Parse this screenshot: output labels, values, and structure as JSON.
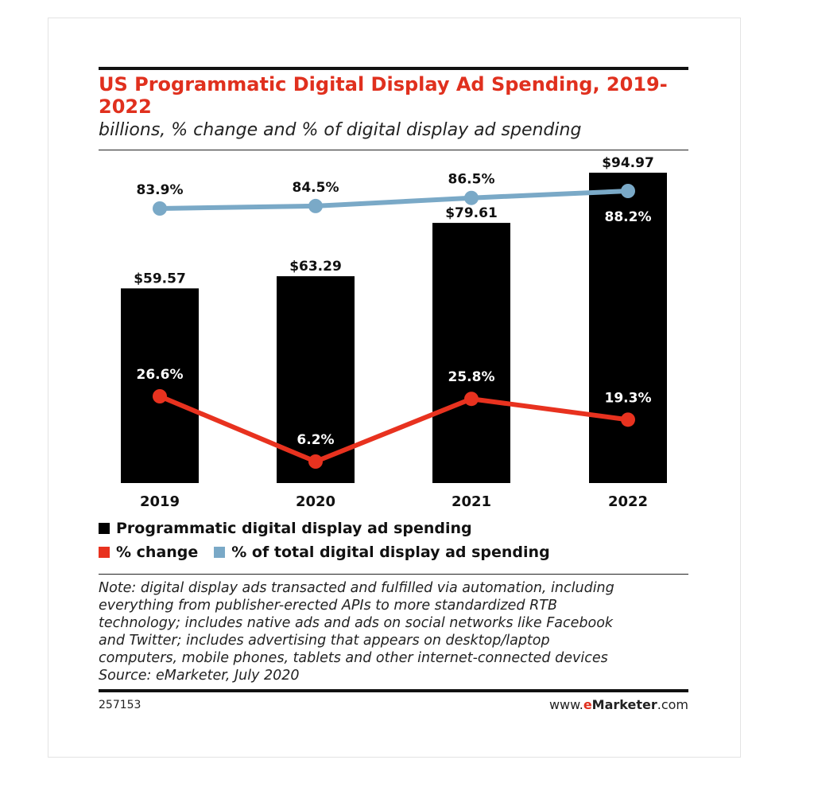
{
  "chart_data": {
    "type": "bar",
    "title": "US Programmatic Digital Display Ad Spending, 2019-2022",
    "subtitle": "billions, % change and % of digital display ad spending",
    "categories": [
      "2019",
      "2020",
      "2021",
      "2022"
    ],
    "bar_series": {
      "name": "Programmatic digital display ad spending",
      "values": [
        59.57,
        63.29,
        79.61,
        94.97
      ],
      "labels": [
        "$59.57",
        "$63.29",
        "$79.61",
        "$94.97"
      ],
      "color": "#000000"
    },
    "line_series": [
      {
        "name": "% change",
        "values": [
          26.6,
          6.2,
          25.8,
          19.3
        ],
        "labels": [
          "26.6%",
          "6.2%",
          "25.8%",
          "19.3%"
        ],
        "color": "#e8321f"
      },
      {
        "name": "% of total digital display ad spending",
        "values": [
          83.9,
          84.5,
          86.5,
          88.2
        ],
        "labels": [
          "83.9%",
          "84.5%",
          "86.5%",
          "88.2%"
        ],
        "color": "#7aa9c7"
      }
    ],
    "grid": false,
    "legend_position": "bottom-left"
  },
  "legend": {
    "bar_label": "Programmatic digital display ad spending",
    "change_label": "% change",
    "share_label": "% of total digital display ad spending"
  },
  "note": {
    "lines": [
      "Note: digital display ads transacted and fulfilled via automation, including",
      "everything from publisher-erected APIs to more standardized RTB",
      "technology; includes native ads and ads on social networks like Facebook",
      "and Twitter; includes advertising that appears on desktop/laptop",
      "computers, mobile phones, tablets and other internet-connected devices"
    ],
    "source": "Source: eMarketer, July 2020"
  },
  "footer": {
    "chart_id": "257153",
    "brand_prefix": "www.",
    "brand_e": "e",
    "brand_name": "Marketer",
    "brand_suffix": ".com"
  }
}
